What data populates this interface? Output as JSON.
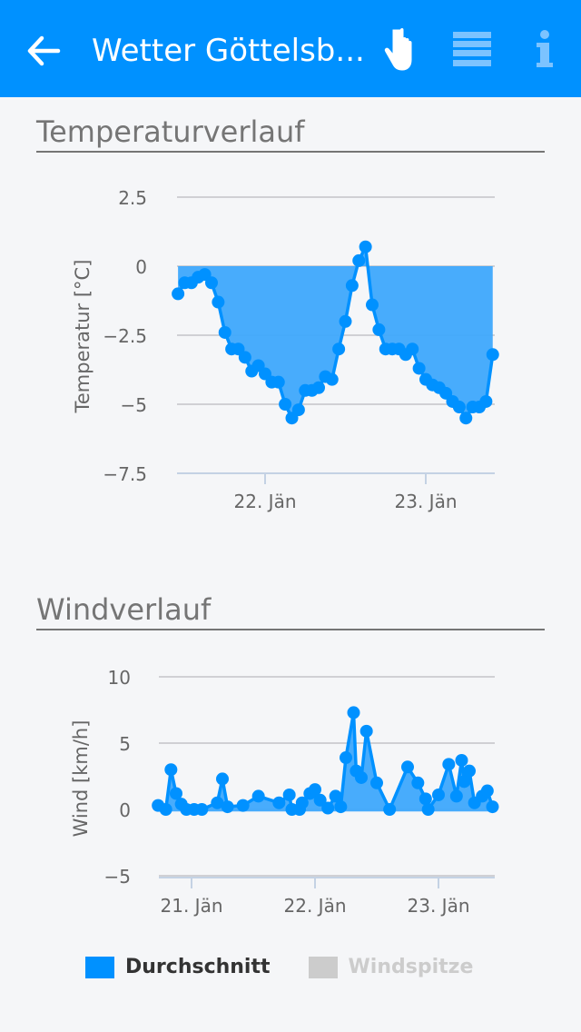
{
  "header": {
    "title": "Wetter Göttelsb...",
    "icons": [
      "back-arrow-icon",
      "hand-pointer-icon",
      "menu-icon",
      "info-icon"
    ],
    "background": "#0091ff"
  },
  "temperature": {
    "section_title": "Temperaturverlauf",
    "chart_data": {
      "type": "area",
      "ylabel": "Temperatur [°C]",
      "ylim": [
        -7.5,
        2.5
      ],
      "yticks": [
        "2.5",
        "0",
        "−2.5",
        "−5",
        "−7.5"
      ],
      "ytick_values": [
        2.5,
        0,
        -2.5,
        -5,
        -7.5
      ],
      "xticks": [
        "22. Jän",
        "23. Jän"
      ],
      "xtick_values": [
        "22.01 00:00",
        "23.01 00:00"
      ],
      "grid": true,
      "color": "#0091ff",
      "fill_color": "#3ea8fc",
      "threshold": 0,
      "x": [
        "21.01 11:00",
        "21.01 12:00",
        "21.01 13:00",
        "21.01 14:00",
        "21.01 15:00",
        "21.01 16:00",
        "21.01 17:00",
        "21.01 18:00",
        "21.01 19:00",
        "21.01 20:00",
        "21.01 21:00",
        "21.01 22:00",
        "21.01 23:00",
        "22.01 00:00",
        "22.01 01:00",
        "22.01 02:00",
        "22.01 03:00",
        "22.01 04:00",
        "22.01 05:00",
        "22.01 06:00",
        "22.01 07:00",
        "22.01 08:00",
        "22.01 09:00",
        "22.01 10:00",
        "22.01 11:00",
        "22.01 12:00",
        "22.01 13:00",
        "22.01 14:00",
        "22.01 15:00",
        "22.01 16:00",
        "22.01 17:00",
        "22.01 18:00",
        "22.01 19:00",
        "22.01 20:00",
        "22.01 21:00",
        "22.01 22:00",
        "22.01 23:00",
        "23.01 00:00",
        "23.01 01:00",
        "23.01 02:00",
        "23.01 03:00",
        "23.01 04:00",
        "23.01 05:00",
        "23.01 06:00",
        "23.01 07:00",
        "23.01 08:00",
        "23.01 09:00",
        "23.01 10:00"
      ],
      "values": [
        -1.0,
        -0.6,
        -0.6,
        -0.4,
        -0.3,
        -0.6,
        -1.3,
        -2.4,
        -3.0,
        -3.0,
        -3.3,
        -3.8,
        -3.6,
        -3.9,
        -4.2,
        -4.2,
        -5.0,
        -5.5,
        -5.2,
        -4.5,
        -4.5,
        -4.4,
        -4.0,
        -4.1,
        -3.0,
        -2.0,
        -0.7,
        0.2,
        0.7,
        -1.4,
        -2.3,
        -3.0,
        -3.0,
        -3.0,
        -3.2,
        -3.0,
        -3.7,
        -4.1,
        -4.3,
        -4.4,
        -4.6,
        -4.9,
        -5.1,
        -5.5,
        -5.1,
        -5.1,
        -4.9,
        -3.2
      ]
    }
  },
  "wind": {
    "section_title": "Windverlauf",
    "chart_data": {
      "type": "area",
      "ylabel": "Wind [km/h]",
      "ylim": [
        -5,
        10
      ],
      "yticks": [
        "10",
        "5",
        "0",
        "−5"
      ],
      "ytick_values": [
        10,
        5,
        0,
        -5
      ],
      "xticks": [
        "21. Jän",
        "22. Jän",
        "23. Jän"
      ],
      "xtick_values": [
        "21.01 00:00",
        "22.01 00:00",
        "23.01 00:00"
      ],
      "grid": true,
      "legend_position": "bottom",
      "series": [
        {
          "name": "Durchschnitt",
          "visible": true,
          "color": "#0091ff",
          "fill_color": "#3ea8fc",
          "x": [
            "20.01 17:30",
            "20.01 19:00",
            "20.01 20:00",
            "20.01 21:00",
            "20.01 22:00",
            "20.01 23:00",
            "21.01 00:30",
            "21.01 02:00",
            "21.01 05:00",
            "21.01 06:00",
            "21.01 07:00",
            "21.01 10:00",
            "21.01 13:00",
            "21.01 17:00",
            "21.01 19:00",
            "21.01 19:30",
            "21.01 21:00",
            "21.01 21:30",
            "21.01 23:00",
            "22.01 00:00",
            "22.01 01:00",
            "22.01 02:30",
            "22.01 04:00",
            "22.01 05:00",
            "22.01 06:00",
            "22.01 07:30",
            "22.01 08:00",
            "22.01 09:00",
            "22.01 10:00",
            "22.01 12:00",
            "22.01 14:30",
            "22.01 18:00",
            "22.01 20:00",
            "22.01 21:30",
            "22.01 22:00",
            "23.01 00:00",
            "23.01 02:00",
            "23.01 03:30",
            "23.01 04:30",
            "23.01 05:00",
            "23.01 06:00",
            "23.01 07:00",
            "23.01 08:30",
            "23.01 09:30",
            "23.01 10:30"
          ],
          "values": [
            0.3,
            0.0,
            3.0,
            1.2,
            0.4,
            0.0,
            0.0,
            0.0,
            0.5,
            2.3,
            0.2,
            0.3,
            1.0,
            0.5,
            1.1,
            0.0,
            0.0,
            0.5,
            1.2,
            1.5,
            0.7,
            0.1,
            1.0,
            0.2,
            3.9,
            7.3,
            2.9,
            2.4,
            5.9,
            2.0,
            0.0,
            3.2,
            2.0,
            0.8,
            0.0,
            1.1,
            3.4,
            1.0,
            3.7,
            2.1,
            2.9,
            0.5,
            1.0,
            1.4,
            0.2
          ]
        },
        {
          "name": "Windspitze",
          "visible": false,
          "color": "#cccccc"
        }
      ]
    }
  },
  "legend": {
    "items": [
      {
        "label": "Durchschnitt",
        "color": "#0091ff",
        "text_color": "#333333"
      },
      {
        "label": "Windspitze",
        "color": "#cccccc",
        "text_color": "#cccccc"
      }
    ]
  }
}
